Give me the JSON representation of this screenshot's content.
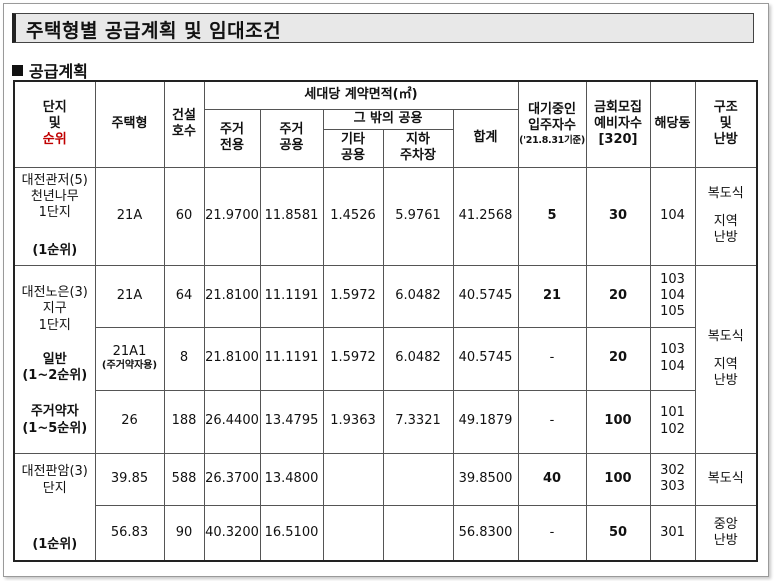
{
  "title": "주택형별 공급계획 및 임대조건",
  "section": "공급계획",
  "headers": {
    "danji": "단지",
    "mit": "및",
    "sunwi": "순위",
    "type": "주택형",
    "units_l1": "건설",
    "units_l2": "호수",
    "area_group": "세대당 계약면적(㎡)",
    "excl_l1": "주거",
    "excl_l2": "전용",
    "common_l1": "주거",
    "common_l2": "공용",
    "other_group": "그 밖의 공용",
    "etc_l1": "기타",
    "etc_l2": "공용",
    "park_l1": "지하",
    "park_l2": "주차장",
    "total": "합계",
    "waiting_l1": "대기중인",
    "waiting_l2": "입주자수",
    "waiting_l3": "('21.8.31기준)",
    "reserve_l1": "금회모집",
    "reserve_l2": "예비자수",
    "reserve_l3": "[320]",
    "building": "해당동",
    "struct_l1": "구조",
    "struct_l2": "및",
    "struct_l3": "난방"
  },
  "groups": [
    {
      "name_l1": "대전관저(5)",
      "name_l2": "천년나무",
      "name_l3": "1단지",
      "rank": "(1순위)",
      "struct_top": "복도식",
      "struct_l1": "지역",
      "struct_l2": "난방",
      "rows": [
        {
          "type": "21A",
          "type_sub": "",
          "units": "60",
          "excl": "21.9700",
          "common": "11.8581",
          "etc": "1.4526",
          "park": "5.9761",
          "total": "41.2568",
          "waiting": "5",
          "reserve": "30",
          "bldg": [
            "104"
          ]
        }
      ]
    },
    {
      "name_l1": "대전노은(3)",
      "name_l2": "지구",
      "name_l3": "1단지",
      "sub1_l1": "일반",
      "sub1_l2": "(1~2순위)",
      "sub2_l1": "주거약자",
      "sub2_l2": "(1~5순위)",
      "struct_top": "복도식",
      "struct_l1": "지역",
      "struct_l2": "난방",
      "rows": [
        {
          "type": "21A",
          "type_sub": "",
          "units": "64",
          "excl": "21.8100",
          "common": "11.1191",
          "etc": "1.5972",
          "park": "6.0482",
          "total": "40.5745",
          "waiting": "21",
          "reserve": "20",
          "bldg": [
            "103",
            "104",
            "105"
          ]
        },
        {
          "type": "21A1",
          "type_sub": "(주거약자용)",
          "units": "8",
          "excl": "21.8100",
          "common": "11.1191",
          "etc": "1.5972",
          "park": "6.0482",
          "total": "40.5745",
          "waiting": "-",
          "reserve": "20",
          "bldg": [
            "103",
            "104"
          ]
        },
        {
          "type": "26",
          "type_sub": "",
          "units": "188",
          "excl": "26.4400",
          "common": "13.4795",
          "etc": "1.9363",
          "park": "7.3321",
          "total": "49.1879",
          "waiting": "-",
          "reserve": "100",
          "bldg": [
            "101",
            "102"
          ]
        }
      ]
    },
    {
      "name_l1": "대전판암(3)",
      "name_l2": "단지",
      "rank": "(1순위)",
      "struct_top": "복도식",
      "struct_l1": "중앙",
      "struct_l2": "난방",
      "rows": [
        {
          "type": "39.85",
          "type_sub": "",
          "units": "588",
          "excl": "26.3700",
          "common": "13.4800",
          "etc": "",
          "park": "",
          "total": "39.8500",
          "waiting": "40",
          "reserve": "100",
          "bldg": [
            "302",
            "303"
          ]
        },
        {
          "type": "56.83",
          "type_sub": "",
          "units": "90",
          "excl": "40.3200",
          "common": "16.5100",
          "etc": "",
          "park": "",
          "total": "56.8300",
          "waiting": "-",
          "reserve": "50",
          "bldg": [
            "301"
          ]
        }
      ]
    }
  ]
}
